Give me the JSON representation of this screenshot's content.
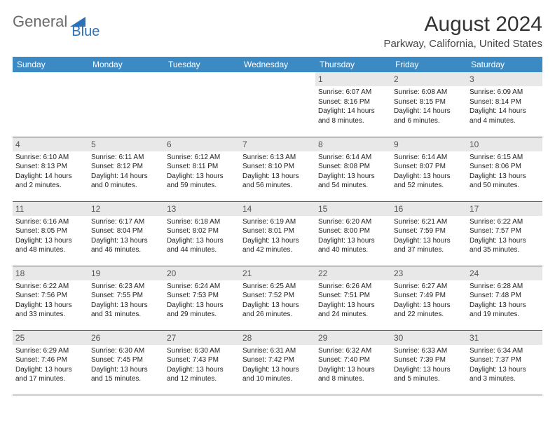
{
  "logo": {
    "text1": "General",
    "text2": "Blue"
  },
  "title": "August 2024",
  "location": "Parkway, California, United States",
  "colors": {
    "header_bg": "#3b8ac4",
    "header_text": "#ffffff",
    "date_band_bg": "#e8e8e8",
    "rule": "#3b6f9e",
    "logo_gray": "#6a6a6a",
    "logo_blue": "#2d72b8"
  },
  "dayNames": [
    "Sunday",
    "Monday",
    "Tuesday",
    "Wednesday",
    "Thursday",
    "Friday",
    "Saturday"
  ],
  "weeks": [
    [
      {
        "date": "",
        "lines": []
      },
      {
        "date": "",
        "lines": []
      },
      {
        "date": "",
        "lines": []
      },
      {
        "date": "",
        "lines": []
      },
      {
        "date": "1",
        "lines": [
          "Sunrise: 6:07 AM",
          "Sunset: 8:16 PM",
          "Daylight: 14 hours and 8 minutes."
        ]
      },
      {
        "date": "2",
        "lines": [
          "Sunrise: 6:08 AM",
          "Sunset: 8:15 PM",
          "Daylight: 14 hours and 6 minutes."
        ]
      },
      {
        "date": "3",
        "lines": [
          "Sunrise: 6:09 AM",
          "Sunset: 8:14 PM",
          "Daylight: 14 hours and 4 minutes."
        ]
      }
    ],
    [
      {
        "date": "4",
        "lines": [
          "Sunrise: 6:10 AM",
          "Sunset: 8:13 PM",
          "Daylight: 14 hours and 2 minutes."
        ]
      },
      {
        "date": "5",
        "lines": [
          "Sunrise: 6:11 AM",
          "Sunset: 8:12 PM",
          "Daylight: 14 hours and 0 minutes."
        ]
      },
      {
        "date": "6",
        "lines": [
          "Sunrise: 6:12 AM",
          "Sunset: 8:11 PM",
          "Daylight: 13 hours and 59 minutes."
        ]
      },
      {
        "date": "7",
        "lines": [
          "Sunrise: 6:13 AM",
          "Sunset: 8:10 PM",
          "Daylight: 13 hours and 56 minutes."
        ]
      },
      {
        "date": "8",
        "lines": [
          "Sunrise: 6:14 AM",
          "Sunset: 8:08 PM",
          "Daylight: 13 hours and 54 minutes."
        ]
      },
      {
        "date": "9",
        "lines": [
          "Sunrise: 6:14 AM",
          "Sunset: 8:07 PM",
          "Daylight: 13 hours and 52 minutes."
        ]
      },
      {
        "date": "10",
        "lines": [
          "Sunrise: 6:15 AM",
          "Sunset: 8:06 PM",
          "Daylight: 13 hours and 50 minutes."
        ]
      }
    ],
    [
      {
        "date": "11",
        "lines": [
          "Sunrise: 6:16 AM",
          "Sunset: 8:05 PM",
          "Daylight: 13 hours and 48 minutes."
        ]
      },
      {
        "date": "12",
        "lines": [
          "Sunrise: 6:17 AM",
          "Sunset: 8:04 PM",
          "Daylight: 13 hours and 46 minutes."
        ]
      },
      {
        "date": "13",
        "lines": [
          "Sunrise: 6:18 AM",
          "Sunset: 8:02 PM",
          "Daylight: 13 hours and 44 minutes."
        ]
      },
      {
        "date": "14",
        "lines": [
          "Sunrise: 6:19 AM",
          "Sunset: 8:01 PM",
          "Daylight: 13 hours and 42 minutes."
        ]
      },
      {
        "date": "15",
        "lines": [
          "Sunrise: 6:20 AM",
          "Sunset: 8:00 PM",
          "Daylight: 13 hours and 40 minutes."
        ]
      },
      {
        "date": "16",
        "lines": [
          "Sunrise: 6:21 AM",
          "Sunset: 7:59 PM",
          "Daylight: 13 hours and 37 minutes."
        ]
      },
      {
        "date": "17",
        "lines": [
          "Sunrise: 6:22 AM",
          "Sunset: 7:57 PM",
          "Daylight: 13 hours and 35 minutes."
        ]
      }
    ],
    [
      {
        "date": "18",
        "lines": [
          "Sunrise: 6:22 AM",
          "Sunset: 7:56 PM",
          "Daylight: 13 hours and 33 minutes."
        ]
      },
      {
        "date": "19",
        "lines": [
          "Sunrise: 6:23 AM",
          "Sunset: 7:55 PM",
          "Daylight: 13 hours and 31 minutes."
        ]
      },
      {
        "date": "20",
        "lines": [
          "Sunrise: 6:24 AM",
          "Sunset: 7:53 PM",
          "Daylight: 13 hours and 29 minutes."
        ]
      },
      {
        "date": "21",
        "lines": [
          "Sunrise: 6:25 AM",
          "Sunset: 7:52 PM",
          "Daylight: 13 hours and 26 minutes."
        ]
      },
      {
        "date": "22",
        "lines": [
          "Sunrise: 6:26 AM",
          "Sunset: 7:51 PM",
          "Daylight: 13 hours and 24 minutes."
        ]
      },
      {
        "date": "23",
        "lines": [
          "Sunrise: 6:27 AM",
          "Sunset: 7:49 PM",
          "Daylight: 13 hours and 22 minutes."
        ]
      },
      {
        "date": "24",
        "lines": [
          "Sunrise: 6:28 AM",
          "Sunset: 7:48 PM",
          "Daylight: 13 hours and 19 minutes."
        ]
      }
    ],
    [
      {
        "date": "25",
        "lines": [
          "Sunrise: 6:29 AM",
          "Sunset: 7:46 PM",
          "Daylight: 13 hours and 17 minutes."
        ]
      },
      {
        "date": "26",
        "lines": [
          "Sunrise: 6:30 AM",
          "Sunset: 7:45 PM",
          "Daylight: 13 hours and 15 minutes."
        ]
      },
      {
        "date": "27",
        "lines": [
          "Sunrise: 6:30 AM",
          "Sunset: 7:43 PM",
          "Daylight: 13 hours and 12 minutes."
        ]
      },
      {
        "date": "28",
        "lines": [
          "Sunrise: 6:31 AM",
          "Sunset: 7:42 PM",
          "Daylight: 13 hours and 10 minutes."
        ]
      },
      {
        "date": "29",
        "lines": [
          "Sunrise: 6:32 AM",
          "Sunset: 7:40 PM",
          "Daylight: 13 hours and 8 minutes."
        ]
      },
      {
        "date": "30",
        "lines": [
          "Sunrise: 6:33 AM",
          "Sunset: 7:39 PM",
          "Daylight: 13 hours and 5 minutes."
        ]
      },
      {
        "date": "31",
        "lines": [
          "Sunrise: 6:34 AM",
          "Sunset: 7:37 PM",
          "Daylight: 13 hours and 3 minutes."
        ]
      }
    ]
  ]
}
